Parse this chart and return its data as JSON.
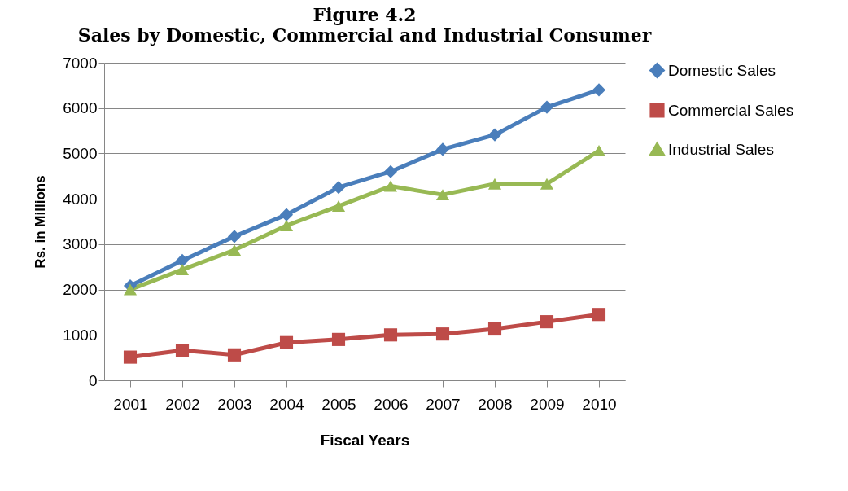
{
  "chart_data": {
    "type": "line",
    "title": "Figure 4.2",
    "subtitle": "Sales by Domestic, Commercial and Industrial Consumer",
    "xlabel": "Fiscal Years",
    "ylabel": "Rs. in Millions",
    "categories": [
      "2001",
      "2002",
      "2003",
      "2004",
      "2005",
      "2006",
      "2007",
      "2008",
      "2009",
      "2010"
    ],
    "series": [
      {
        "name": "Domestic Sales",
        "color": "#4a7ebb",
        "marker": "diamond",
        "values": [
          2080,
          2640,
          3170,
          3650,
          4250,
          4600,
          5090,
          5410,
          6020,
          6400
        ]
      },
      {
        "name": "Commercial Sales",
        "color": "#be4b48",
        "marker": "square",
        "values": [
          510,
          660,
          560,
          830,
          900,
          1000,
          1020,
          1130,
          1290,
          1450
        ]
      },
      {
        "name": "Industrial Sales",
        "color": "#98b954",
        "marker": "triangle",
        "values": [
          2000,
          2440,
          2870,
          3410,
          3840,
          4280,
          4090,
          4330,
          4330,
          5060
        ]
      }
    ],
    "ylim": [
      0,
      7000
    ],
    "yticks": [
      0,
      1000,
      2000,
      3000,
      4000,
      5000,
      6000,
      7000
    ],
    "grid": "y",
    "legend": "right",
    "line_style": "solid"
  }
}
